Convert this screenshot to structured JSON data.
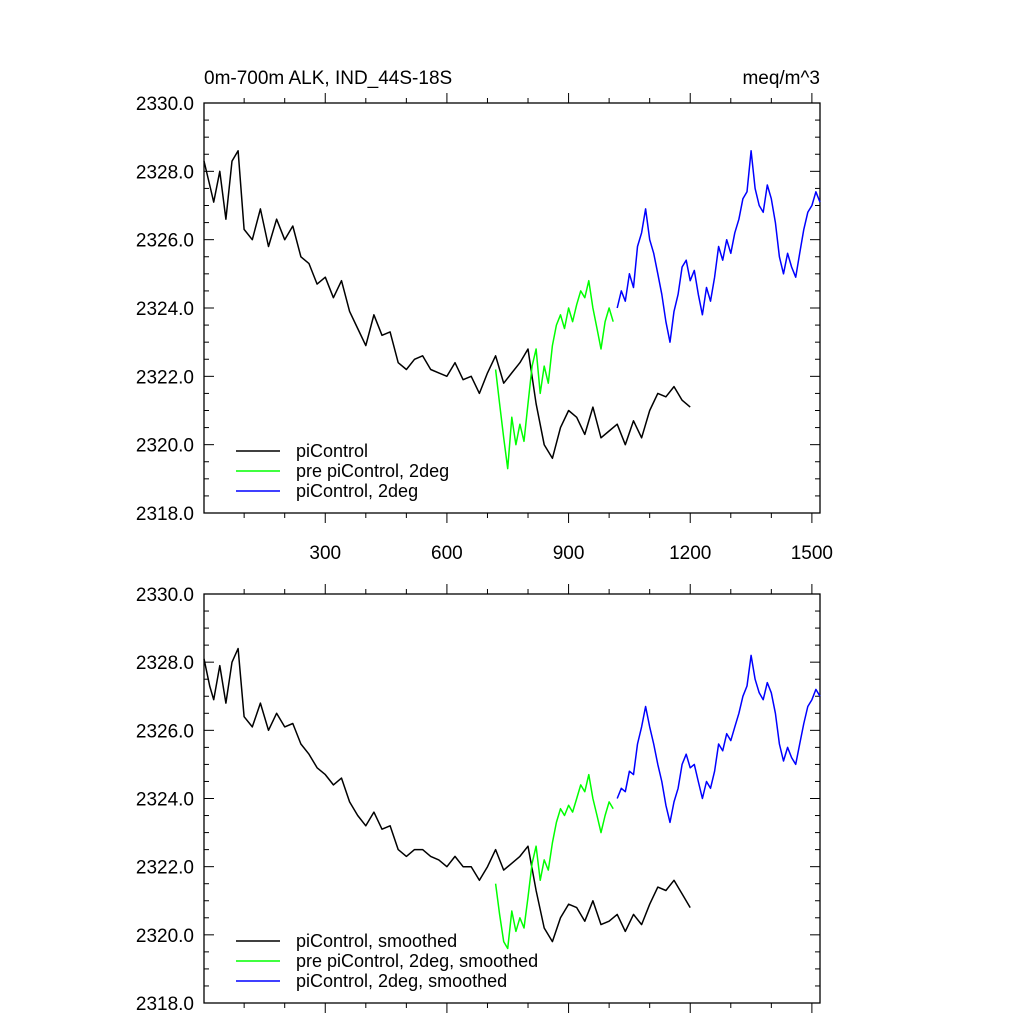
{
  "header": {
    "title": "0m-700m ALK, IND_44S-18S",
    "units": "meq/m^3"
  },
  "chart_data": [
    {
      "type": "line",
      "title": "0m-700m ALK, IND_44S-18S",
      "units": "meq/m^3",
      "xlim": [
        1,
        1520
      ],
      "ylim": [
        2318.0,
        2330.0
      ],
      "xticks": [
        300,
        600,
        900,
        1200,
        1500
      ],
      "xtick_labels": [
        "300",
        "600",
        "900",
        "1200",
        "1500"
      ],
      "yticks": [
        2318.0,
        2320.0,
        2322.0,
        2324.0,
        2326.0,
        2328.0,
        2330.0
      ],
      "ytick_labels": [
        "2318.0",
        "2320.0",
        "2322.0",
        "2324.0",
        "2326.0",
        "2328.0",
        "2330.0"
      ],
      "legend_position": "bottom-left",
      "series": [
        {
          "name": "piControl",
          "color": "#000000",
          "x": [
            1,
            15,
            25,
            40,
            55,
            70,
            85,
            100,
            120,
            140,
            160,
            180,
            200,
            220,
            240,
            260,
            280,
            300,
            320,
            340,
            360,
            380,
            400,
            420,
            440,
            460,
            480,
            500,
            520,
            540,
            560,
            580,
            600,
            620,
            640,
            660,
            680,
            700,
            720,
            740,
            760,
            780,
            800,
            820,
            840,
            860,
            880,
            900,
            920,
            940,
            960,
            980,
            1000,
            1020,
            1040,
            1060,
            1080,
            1100,
            1120,
            1140,
            1160,
            1180,
            1200
          ],
          "values": [
            2328.3,
            2327.6,
            2327.1,
            2328.0,
            2326.6,
            2328.3,
            2328.6,
            2326.3,
            2326.0,
            2326.9,
            2325.8,
            2326.6,
            2326.0,
            2326.4,
            2325.5,
            2325.3,
            2324.7,
            2324.9,
            2324.3,
            2324.8,
            2323.9,
            2323.4,
            2322.9,
            2323.8,
            2323.2,
            2323.3,
            2322.4,
            2322.2,
            2322.5,
            2322.6,
            2322.2,
            2322.1,
            2322.0,
            2322.4,
            2321.9,
            2322.0,
            2321.5,
            2322.1,
            2322.6,
            2321.8,
            2322.1,
            2322.4,
            2322.8,
            2321.2,
            2320.0,
            2319.6,
            2320.5,
            2321.0,
            2320.8,
            2320.3,
            2321.1,
            2320.2,
            2320.4,
            2320.6,
            2320.0,
            2320.7,
            2320.2,
            2321.0,
            2321.5,
            2321.4,
            2321.7,
            2321.3,
            2321.1
          ]
        },
        {
          "name": "pre piControl, 2deg",
          "color": "#00ff00",
          "x": [
            720,
            730,
            740,
            750,
            760,
            770,
            780,
            790,
            800,
            810,
            820,
            830,
            840,
            850,
            860,
            870,
            880,
            890,
            900,
            910,
            920,
            930,
            940,
            950,
            960,
            970,
            980,
            990,
            1000,
            1010
          ],
          "values": [
            2322.2,
            2321.2,
            2320.2,
            2319.3,
            2320.8,
            2320.0,
            2320.6,
            2320.1,
            2321.2,
            2322.3,
            2322.8,
            2321.5,
            2322.3,
            2321.8,
            2322.9,
            2323.5,
            2323.8,
            2323.4,
            2324.0,
            2323.6,
            2324.1,
            2324.5,
            2324.3,
            2324.8,
            2324.0,
            2323.4,
            2322.8,
            2323.6,
            2324.0,
            2323.6
          ]
        },
        {
          "name": "piControl, 2deg",
          "color": "#0000ff",
          "x": [
            1020,
            1030,
            1040,
            1050,
            1060,
            1070,
            1080,
            1090,
            1100,
            1110,
            1120,
            1130,
            1140,
            1150,
            1160,
            1170,
            1180,
            1190,
            1200,
            1210,
            1220,
            1230,
            1240,
            1250,
            1260,
            1270,
            1280,
            1290,
            1300,
            1310,
            1320,
            1330,
            1340,
            1350,
            1360,
            1370,
            1380,
            1390,
            1400,
            1410,
            1420,
            1430,
            1440,
            1450,
            1460,
            1470,
            1480,
            1490,
            1500,
            1510,
            1520
          ],
          "values": [
            2324.0,
            2324.5,
            2324.2,
            2325.0,
            2324.6,
            2325.8,
            2326.2,
            2326.9,
            2326.0,
            2325.6,
            2325.0,
            2324.4,
            2323.6,
            2323.0,
            2323.9,
            2324.4,
            2325.2,
            2325.4,
            2324.8,
            2325.1,
            2324.4,
            2323.8,
            2324.6,
            2324.2,
            2324.9,
            2325.8,
            2325.4,
            2326.0,
            2325.6,
            2326.2,
            2326.6,
            2327.2,
            2327.4,
            2328.6,
            2327.5,
            2327.0,
            2326.8,
            2327.6,
            2327.2,
            2326.5,
            2325.5,
            2325.0,
            2325.6,
            2325.2,
            2324.9,
            2325.6,
            2326.3,
            2326.8,
            2327.0,
            2327.4,
            2327.1
          ]
        }
      ]
    },
    {
      "type": "line",
      "xlim": [
        1,
        1520
      ],
      "ylim": [
        2318.0,
        2330.0
      ],
      "xticks": [
        300,
        600,
        900,
        1200,
        1500
      ],
      "yticks": [
        2318.0,
        2320.0,
        2322.0,
        2324.0,
        2326.0,
        2328.0,
        2330.0
      ],
      "ytick_labels": [
        "2318.0",
        "2320.0",
        "2322.0",
        "2324.0",
        "2326.0",
        "2328.0",
        "2330.0"
      ],
      "legend_position": "bottom-left",
      "series": [
        {
          "name": "piControl, smoothed",
          "color": "#000000",
          "x": [
            1,
            15,
            25,
            40,
            55,
            70,
            85,
            100,
            120,
            140,
            160,
            180,
            200,
            220,
            240,
            260,
            280,
            300,
            320,
            340,
            360,
            380,
            400,
            420,
            440,
            460,
            480,
            500,
            520,
            540,
            560,
            580,
            600,
            620,
            640,
            660,
            680,
            700,
            720,
            740,
            760,
            780,
            800,
            820,
            840,
            860,
            880,
            900,
            920,
            940,
            960,
            980,
            1000,
            1020,
            1040,
            1060,
            1080,
            1100,
            1120,
            1140,
            1160,
            1180,
            1200
          ],
          "values": [
            2328.1,
            2327.3,
            2326.9,
            2327.9,
            2326.8,
            2328.0,
            2328.4,
            2326.4,
            2326.1,
            2326.8,
            2326.0,
            2326.5,
            2326.1,
            2326.2,
            2325.6,
            2325.3,
            2324.9,
            2324.7,
            2324.4,
            2324.6,
            2323.9,
            2323.5,
            2323.2,
            2323.6,
            2323.1,
            2323.2,
            2322.5,
            2322.3,
            2322.5,
            2322.5,
            2322.3,
            2322.2,
            2322.0,
            2322.3,
            2322.0,
            2322.0,
            2321.6,
            2322.0,
            2322.5,
            2321.9,
            2322.1,
            2322.3,
            2322.6,
            2321.3,
            2320.2,
            2319.8,
            2320.5,
            2320.9,
            2320.8,
            2320.4,
            2321.0,
            2320.3,
            2320.4,
            2320.6,
            2320.1,
            2320.6,
            2320.3,
            2320.9,
            2321.4,
            2321.3,
            2321.6,
            2321.2,
            2320.8
          ]
        },
        {
          "name": "pre piControl, 2deg, smoothed",
          "color": "#00ff00",
          "x": [
            720,
            730,
            740,
            750,
            760,
            770,
            780,
            790,
            800,
            810,
            820,
            830,
            840,
            850,
            860,
            870,
            880,
            890,
            900,
            910,
            920,
            930,
            940,
            950,
            960,
            970,
            980,
            990,
            1000,
            1010
          ],
          "values": [
            2321.5,
            2320.6,
            2319.8,
            2319.6,
            2320.7,
            2320.1,
            2320.5,
            2320.2,
            2321.1,
            2322.1,
            2322.6,
            2321.6,
            2322.2,
            2321.9,
            2322.7,
            2323.3,
            2323.7,
            2323.5,
            2323.8,
            2323.6,
            2324.0,
            2324.4,
            2324.2,
            2324.7,
            2324.0,
            2323.5,
            2323.0,
            2323.5,
            2323.9,
            2323.7
          ]
        },
        {
          "name": "piControl, 2deg, smoothed",
          "color": "#0000ff",
          "x": [
            1020,
            1030,
            1040,
            1050,
            1060,
            1070,
            1080,
            1090,
            1100,
            1110,
            1120,
            1130,
            1140,
            1150,
            1160,
            1170,
            1180,
            1190,
            1200,
            1210,
            1220,
            1230,
            1240,
            1250,
            1260,
            1270,
            1280,
            1290,
            1300,
            1310,
            1320,
            1330,
            1340,
            1350,
            1360,
            1370,
            1380,
            1390,
            1400,
            1410,
            1420,
            1430,
            1440,
            1450,
            1460,
            1470,
            1480,
            1490,
            1500,
            1510,
            1520
          ],
          "values": [
            2324.0,
            2324.3,
            2324.2,
            2324.8,
            2324.7,
            2325.6,
            2326.1,
            2326.7,
            2326.1,
            2325.6,
            2325.0,
            2324.5,
            2323.8,
            2323.3,
            2323.9,
            2324.3,
            2325.0,
            2325.3,
            2324.9,
            2325.0,
            2324.5,
            2324.0,
            2324.5,
            2324.3,
            2324.8,
            2325.6,
            2325.4,
            2325.9,
            2325.7,
            2326.1,
            2326.5,
            2327.0,
            2327.3,
            2328.2,
            2327.5,
            2327.1,
            2326.9,
            2327.4,
            2327.1,
            2326.5,
            2325.6,
            2325.1,
            2325.5,
            2325.2,
            2325.0,
            2325.6,
            2326.2,
            2326.7,
            2326.9,
            2327.2,
            2327.0
          ]
        }
      ]
    }
  ]
}
